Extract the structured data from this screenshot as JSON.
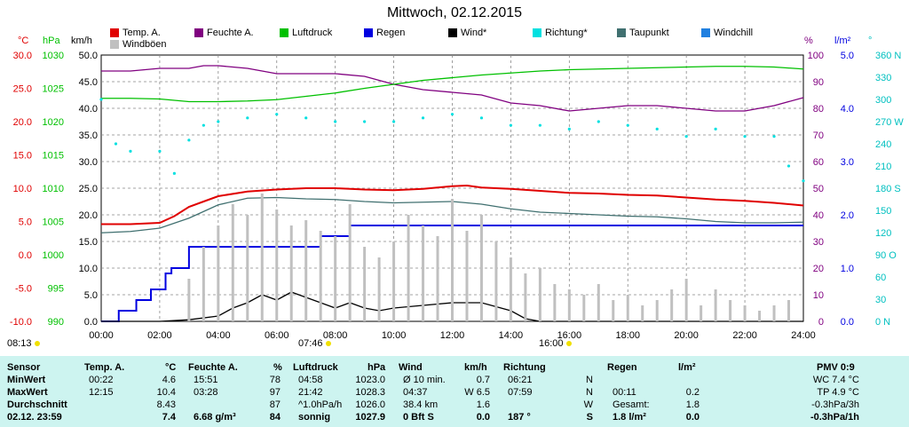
{
  "title": "Mittwoch, 02.12.2015",
  "legend": [
    {
      "label": "Temp. A.",
      "color": "#e00000"
    },
    {
      "label": "Feuchte A.",
      "color": "#800080"
    },
    {
      "label": "Luftdruck",
      "color": "#00c000"
    },
    {
      "label": "Regen",
      "color": "#0000e0"
    },
    {
      "label": "Wind*",
      "color": "#000000"
    },
    {
      "label": "Richtung*",
      "color": "#00e0e0"
    },
    {
      "label": "Taupunkt",
      "color": "#407070"
    },
    {
      "label": "Windchill",
      "color": "#2080e0"
    },
    {
      "label": "Windböen",
      "color": "#c0c0c0"
    }
  ],
  "units": {
    "temp": "°C",
    "press": "hPa",
    "wind": "km/h",
    "hum": "%",
    "rain": "l/m²",
    "dir": "°"
  },
  "axes": {
    "temp_ticks": [
      "30.0",
      "25.0",
      "20.0",
      "15.0",
      "10.0",
      "5.0",
      "0.0",
      "-5.0",
      "-10.0"
    ],
    "press_ticks": [
      "1030",
      "1025",
      "1020",
      "1015",
      "1010",
      "1005",
      "1000",
      "995",
      "990"
    ],
    "wind_ticks": [
      "50.0",
      "45.0",
      "40.0",
      "35.0",
      "30.0",
      "25.0",
      "20.0",
      "15.0",
      "10.0",
      "5.0",
      "0.0"
    ],
    "hum_ticks": [
      "100",
      "90",
      "80",
      "70",
      "60",
      "50",
      "40",
      "30",
      "20",
      "10",
      "0"
    ],
    "rain_ticks": [
      "5.0",
      "4.0",
      "3.0",
      "2.0",
      "1.0",
      "0.0"
    ],
    "dir_ticks": [
      "360 N",
      "330",
      "300",
      "270 W",
      "240",
      "210",
      "180 S",
      "150",
      "120",
      "90 O",
      "60",
      "30",
      "0 N"
    ],
    "x_ticks": [
      "00:00",
      "02:00",
      "04:00",
      "06:00",
      "08:00",
      "10:00",
      "12:00",
      "14:00",
      "16:00",
      "18:00",
      "20:00",
      "22:00",
      "24:00"
    ]
  },
  "sun_marks": [
    {
      "label": "08:13"
    },
    {
      "label": "07:46"
    },
    {
      "label": "16:00"
    }
  ],
  "chart_data": {
    "type": "line",
    "x_unit": "hours",
    "series": [
      {
        "name": "Temp. A.",
        "color": "#e00000",
        "axis": "temp",
        "x": [
          0,
          1,
          2,
          2.5,
          3,
          3.5,
          4,
          5,
          6,
          7,
          8,
          9,
          10,
          11,
          12,
          12.5,
          13,
          14,
          15,
          16,
          17,
          18,
          19,
          20,
          21,
          22,
          23,
          24
        ],
        "y": [
          4.6,
          4.6,
          4.8,
          5.8,
          7.2,
          8.0,
          8.8,
          9.5,
          9.8,
          10.0,
          10.0,
          9.8,
          9.7,
          9.9,
          10.3,
          10.4,
          10.1,
          9.9,
          9.6,
          9.3,
          9.2,
          9.0,
          8.9,
          8.6,
          8.3,
          8.1,
          7.8,
          7.4
        ]
      },
      {
        "name": "Taupunkt",
        "color": "#407070",
        "axis": "temp",
        "x": [
          0,
          1,
          2,
          3,
          4,
          5,
          6,
          7,
          8,
          9,
          10,
          11,
          12,
          13,
          14,
          15,
          16,
          17,
          18,
          19,
          20,
          21,
          22,
          23,
          24
        ],
        "y": [
          3.3,
          3.5,
          4.0,
          5.5,
          7.5,
          8.5,
          8.6,
          8.4,
          8.3,
          8.0,
          7.8,
          7.9,
          8.0,
          7.6,
          6.9,
          6.4,
          6.2,
          6.0,
          5.8,
          5.7,
          5.4,
          5.0,
          4.8,
          4.8,
          4.9
        ]
      },
      {
        "name": "Feuchte A.",
        "color": "#800080",
        "axis": "hum",
        "x": [
          0,
          1,
          2,
          3,
          3.5,
          4,
          5,
          5.5,
          6,
          7,
          8,
          9,
          10,
          11,
          12,
          13,
          14,
          15,
          16,
          17,
          18,
          19,
          20,
          21,
          22,
          23,
          24
        ],
        "y": [
          94,
          94,
          95,
          95,
          96,
          96,
          95,
          94,
          93,
          93,
          93,
          92,
          89,
          87,
          86,
          85,
          82,
          81,
          79,
          80,
          81,
          81,
          80,
          79,
          79,
          81,
          84
        ]
      },
      {
        "name": "Luftdruck",
        "color": "#00c000",
        "axis": "press",
        "x": [
          0,
          1,
          2,
          3,
          4,
          5,
          6,
          7,
          8,
          9,
          10,
          11,
          12,
          13,
          14,
          15,
          16,
          17,
          18,
          19,
          20,
          21,
          22,
          23,
          24
        ],
        "y": [
          1023.5,
          1023.5,
          1023.4,
          1023.0,
          1023.0,
          1023.1,
          1023.3,
          1023.8,
          1024.3,
          1025.0,
          1025.6,
          1026.2,
          1026.6,
          1027.0,
          1027.3,
          1027.6,
          1027.8,
          1027.9,
          1028.0,
          1028.1,
          1028.2,
          1028.3,
          1028.3,
          1028.2,
          1027.9
        ]
      },
      {
        "name": "Regen",
        "color": "#0000e0",
        "axis": "rain",
        "step": true,
        "x": [
          0,
          0.5,
          0.6,
          1.0,
          1.2,
          1.5,
          1.7,
          2.0,
          2.2,
          2.4,
          2.8,
          3.0,
          4.0,
          5.0,
          6.0,
          6.5,
          7.5,
          8.0,
          8.5,
          9.0,
          10,
          12,
          14,
          16,
          18,
          20,
          22,
          24
        ],
        "y": [
          0,
          0,
          0.2,
          0.2,
          0.4,
          0.4,
          0.6,
          0.6,
          0.9,
          1.0,
          1.0,
          1.4,
          1.4,
          1.4,
          1.4,
          1.4,
          1.6,
          1.6,
          1.8,
          1.8,
          1.8,
          1.8,
          1.8,
          1.8,
          1.8,
          1.8,
          1.8,
          1.8
        ]
      },
      {
        "name": "Wind*",
        "color": "#000000",
        "axis": "wind",
        "x": [
          0,
          2,
          3,
          4,
          4.5,
          5,
          5.5,
          6,
          6.5,
          7,
          7.5,
          8,
          8.5,
          9,
          9.5,
          10,
          11,
          12,
          13,
          14,
          14.5,
          15,
          16,
          17,
          18,
          19,
          20,
          21,
          22,
          23,
          24
        ],
        "y": [
          0,
          0,
          0.3,
          1.0,
          2.5,
          3.5,
          5.0,
          4.0,
          5.5,
          4.5,
          3.5,
          2.5,
          3.5,
          2.5,
          2.0,
          2.5,
          3.0,
          3.5,
          3.5,
          2.0,
          0.5,
          0,
          0,
          0,
          0,
          0,
          0,
          0,
          0,
          0,
          0
        ]
      },
      {
        "name": "Richtung*",
        "color": "#00e0e0",
        "axis": "dir",
        "x": [
          0,
          0.5,
          1,
          2,
          2.5,
          3,
          3.5,
          4,
          5,
          6,
          7,
          8,
          9,
          10,
          11,
          12,
          13,
          14,
          15,
          16,
          17,
          18,
          19,
          20,
          21,
          22,
          23,
          23.5,
          24
        ],
        "y": [
          300,
          240,
          230,
          230,
          200,
          245,
          265,
          270,
          275,
          280,
          275,
          270,
          270,
          270,
          275,
          280,
          275,
          265,
          265,
          260,
          270,
          265,
          260,
          250,
          260,
          250,
          250,
          210,
          190
        ]
      },
      {
        "name": "Windböen",
        "color": "#c0c0c0",
        "axis": "wind",
        "type": "bars",
        "x": [
          3,
          3.5,
          4,
          4.5,
          5,
          5.5,
          6,
          6.5,
          7,
          7.5,
          8,
          8.5,
          9,
          9.5,
          10,
          10.5,
          11,
          11.5,
          12,
          12.5,
          13,
          13.5,
          14,
          14.5,
          15,
          15.5,
          16,
          16.5,
          17,
          17.5,
          18,
          18.5,
          19,
          19.5,
          20,
          20.5,
          21,
          21.5,
          22,
          22.5,
          23,
          23.5
        ],
        "y": [
          8,
          14,
          18,
          22,
          20,
          24,
          21,
          18,
          19,
          17,
          16,
          22,
          14,
          12,
          15,
          20,
          18,
          16,
          23,
          17,
          20,
          15,
          12,
          9,
          10,
          7,
          6,
          5,
          7,
          4,
          5,
          3,
          4,
          6,
          8,
          3,
          6,
          4,
          3,
          2,
          3,
          4
        ]
      }
    ]
  },
  "table": {
    "headers": {
      "sensor": "Sensor",
      "temp": "Temp. A.",
      "temp_unit": "°C",
      "hum": "Feuchte A.",
      "hum_unit": "%",
      "press": "Luftdruck",
      "press_unit": "hPa",
      "wind": "Wind",
      "wind_unit": "km/h",
      "dir": "Richtung",
      "rain": "Regen",
      "rain_unit": "l/m²",
      "pmv": "PMV 0:9"
    },
    "rows": [
      {
        "label": "MinWert",
        "temp_t": "00:22",
        "temp_v": "4.6",
        "hum_t": "15:51",
        "hum_v": "78",
        "press_t": "04:58",
        "press_v": "1023.0",
        "wind_t": "Ø 10 min.",
        "wind_v": "0.7",
        "dir_t": "06:21",
        "dir_v": "N",
        "rain_t": "",
        "rain_v": "",
        "pmv": "WC 7.4 °C"
      },
      {
        "label": "MaxWert",
        "temp_t": "12:15",
        "temp_v": "10.4",
        "hum_t": "03:28",
        "hum_v": "97",
        "press_t": "21:42",
        "press_v": "1028.3",
        "wind_t": "04:37",
        "wind_v": "W 6.5",
        "dir_t": "07:59",
        "dir_v": "N",
        "rain_t": "00:11",
        "rain_v": "0.2",
        "pmv": "TP 4.9 °C"
      },
      {
        "label": "Durchschnitt",
        "temp_t": "",
        "temp_v": "8.43",
        "hum_t": "",
        "hum_v": "87",
        "press_t": "^1.0hPa/h",
        "press_v": "1026.0",
        "wind_t": "38.4 km",
        "wind_v": "1.6",
        "dir_t": "",
        "dir_v": "W",
        "rain_t": "Gesamt:",
        "rain_v": "1.8",
        "pmv": "-0.3hPa/3h"
      },
      {
        "label": "02.12. 23:59",
        "temp_t": "",
        "temp_v": "7.4",
        "hum_t": "6.68 g/m³",
        "hum_v": "84",
        "press_t": "sonnig",
        "press_v": "1027.9",
        "wind_t": "0 Bft S",
        "wind_v": "0.0",
        "dir_t": "187 °",
        "dir_v": "S",
        "rain_t": "1.8 l/m²",
        "rain_v": "0.0",
        "pmv": "-0.3hPa/1h"
      }
    ]
  }
}
